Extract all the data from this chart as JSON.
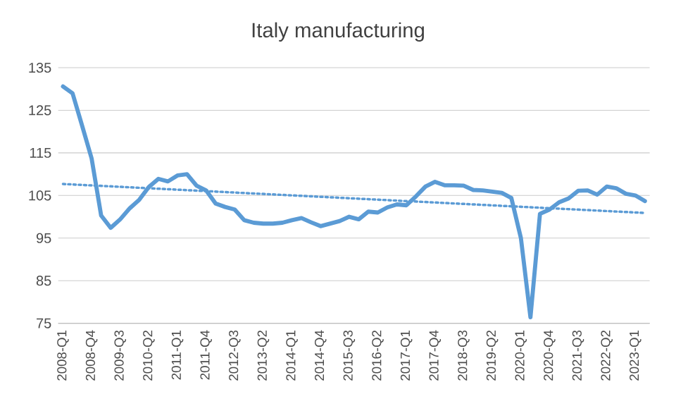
{
  "chart_data": {
    "type": "line",
    "title": "Italy manufacturing",
    "categories": [
      "2008-Q1",
      null,
      null,
      "2008-Q4",
      null,
      null,
      "2009-Q3",
      null,
      null,
      "2010-Q2",
      null,
      null,
      "2011-Q1",
      null,
      null,
      "2011-Q4",
      null,
      null,
      "2012-Q3",
      null,
      null,
      "2013-Q2",
      null,
      null,
      "2014-Q1",
      null,
      null,
      "2014-Q4",
      null,
      null,
      "2015-Q3",
      null,
      null,
      "2016-Q2",
      null,
      null,
      "2017-Q1",
      null,
      null,
      "2017-Q4",
      null,
      null,
      "2018-Q3",
      null,
      null,
      "2019-Q2",
      null,
      null,
      "2020-Q1",
      null,
      null,
      "2020-Q4",
      null,
      null,
      "2021-Q3",
      null,
      null,
      "2022-Q2",
      null,
      null,
      "2023-Q1",
      null
    ],
    "series": [
      {
        "color": "#5b9bd5",
        "line_style": "solid",
        "values": [
          130.6,
          129,
          121.4,
          113.7,
          100.3,
          97.4,
          99.4,
          102,
          104,
          107,
          108.9,
          108.3,
          109.7,
          110,
          107.3,
          106.2,
          103.1,
          102.3,
          101.7,
          99.2,
          98.6,
          98.4,
          98.4,
          98.6,
          99.2,
          99.7,
          98.7,
          97.8,
          98.4,
          99,
          100,
          99.4,
          101.2,
          101,
          102.2,
          102.9,
          102.7,
          104.8,
          107.1,
          108.2,
          107.4,
          107.4,
          107.3,
          106.3,
          106.2,
          105.9,
          105.6,
          104.4,
          95,
          76.4,
          100.7,
          101.7,
          103.4,
          104.3,
          106.1,
          106.2,
          105.2,
          107.1,
          106.7,
          105.4,
          105,
          103.7
        ]
      },
      {
        "color": "#5b9bd5",
        "line_style": "dotted",
        "values": [
          107.7,
          null,
          null,
          null,
          null,
          null,
          null,
          null,
          null,
          null,
          null,
          null,
          null,
          null,
          null,
          null,
          null,
          null,
          null,
          null,
          null,
          null,
          null,
          null,
          null,
          null,
          null,
          null,
          null,
          null,
          null,
          null,
          null,
          null,
          null,
          null,
          null,
          null,
          null,
          null,
          null,
          null,
          null,
          null,
          null,
          null,
          null,
          null,
          null,
          null,
          null,
          null,
          null,
          null,
          null,
          null,
          null,
          null,
          null,
          null,
          null,
          100.9
        ]
      }
    ],
    "ylim": [
      75,
      135
    ],
    "yticks": [
      75,
      85,
      95,
      105,
      115,
      125,
      135
    ],
    "grid": "y",
    "marker": "none"
  }
}
